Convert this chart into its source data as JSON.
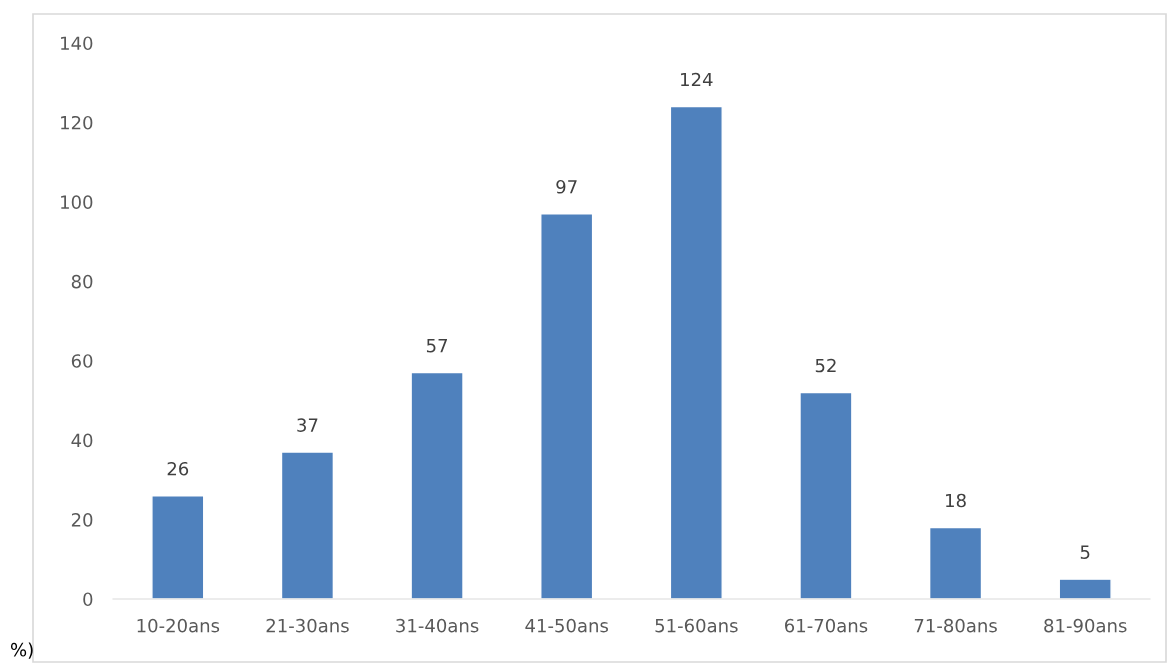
{
  "chart_data": {
    "type": "bar",
    "categories": [
      "10-20ans",
      "21-30ans",
      "31-40ans",
      "41-50ans",
      "51-60ans",
      "61-70ans",
      "71-80ans",
      "81-90ans"
    ],
    "values": [
      26,
      37,
      57,
      97,
      124,
      52,
      18,
      5
    ],
    "color": "#4f81bd",
    "ylim": [
      0,
      140
    ],
    "yticks": [
      0,
      20,
      40,
      60,
      80,
      100,
      120,
      140
    ],
    "grid": false,
    "data_labels": true,
    "annotations": [
      "%)"
    ]
  }
}
